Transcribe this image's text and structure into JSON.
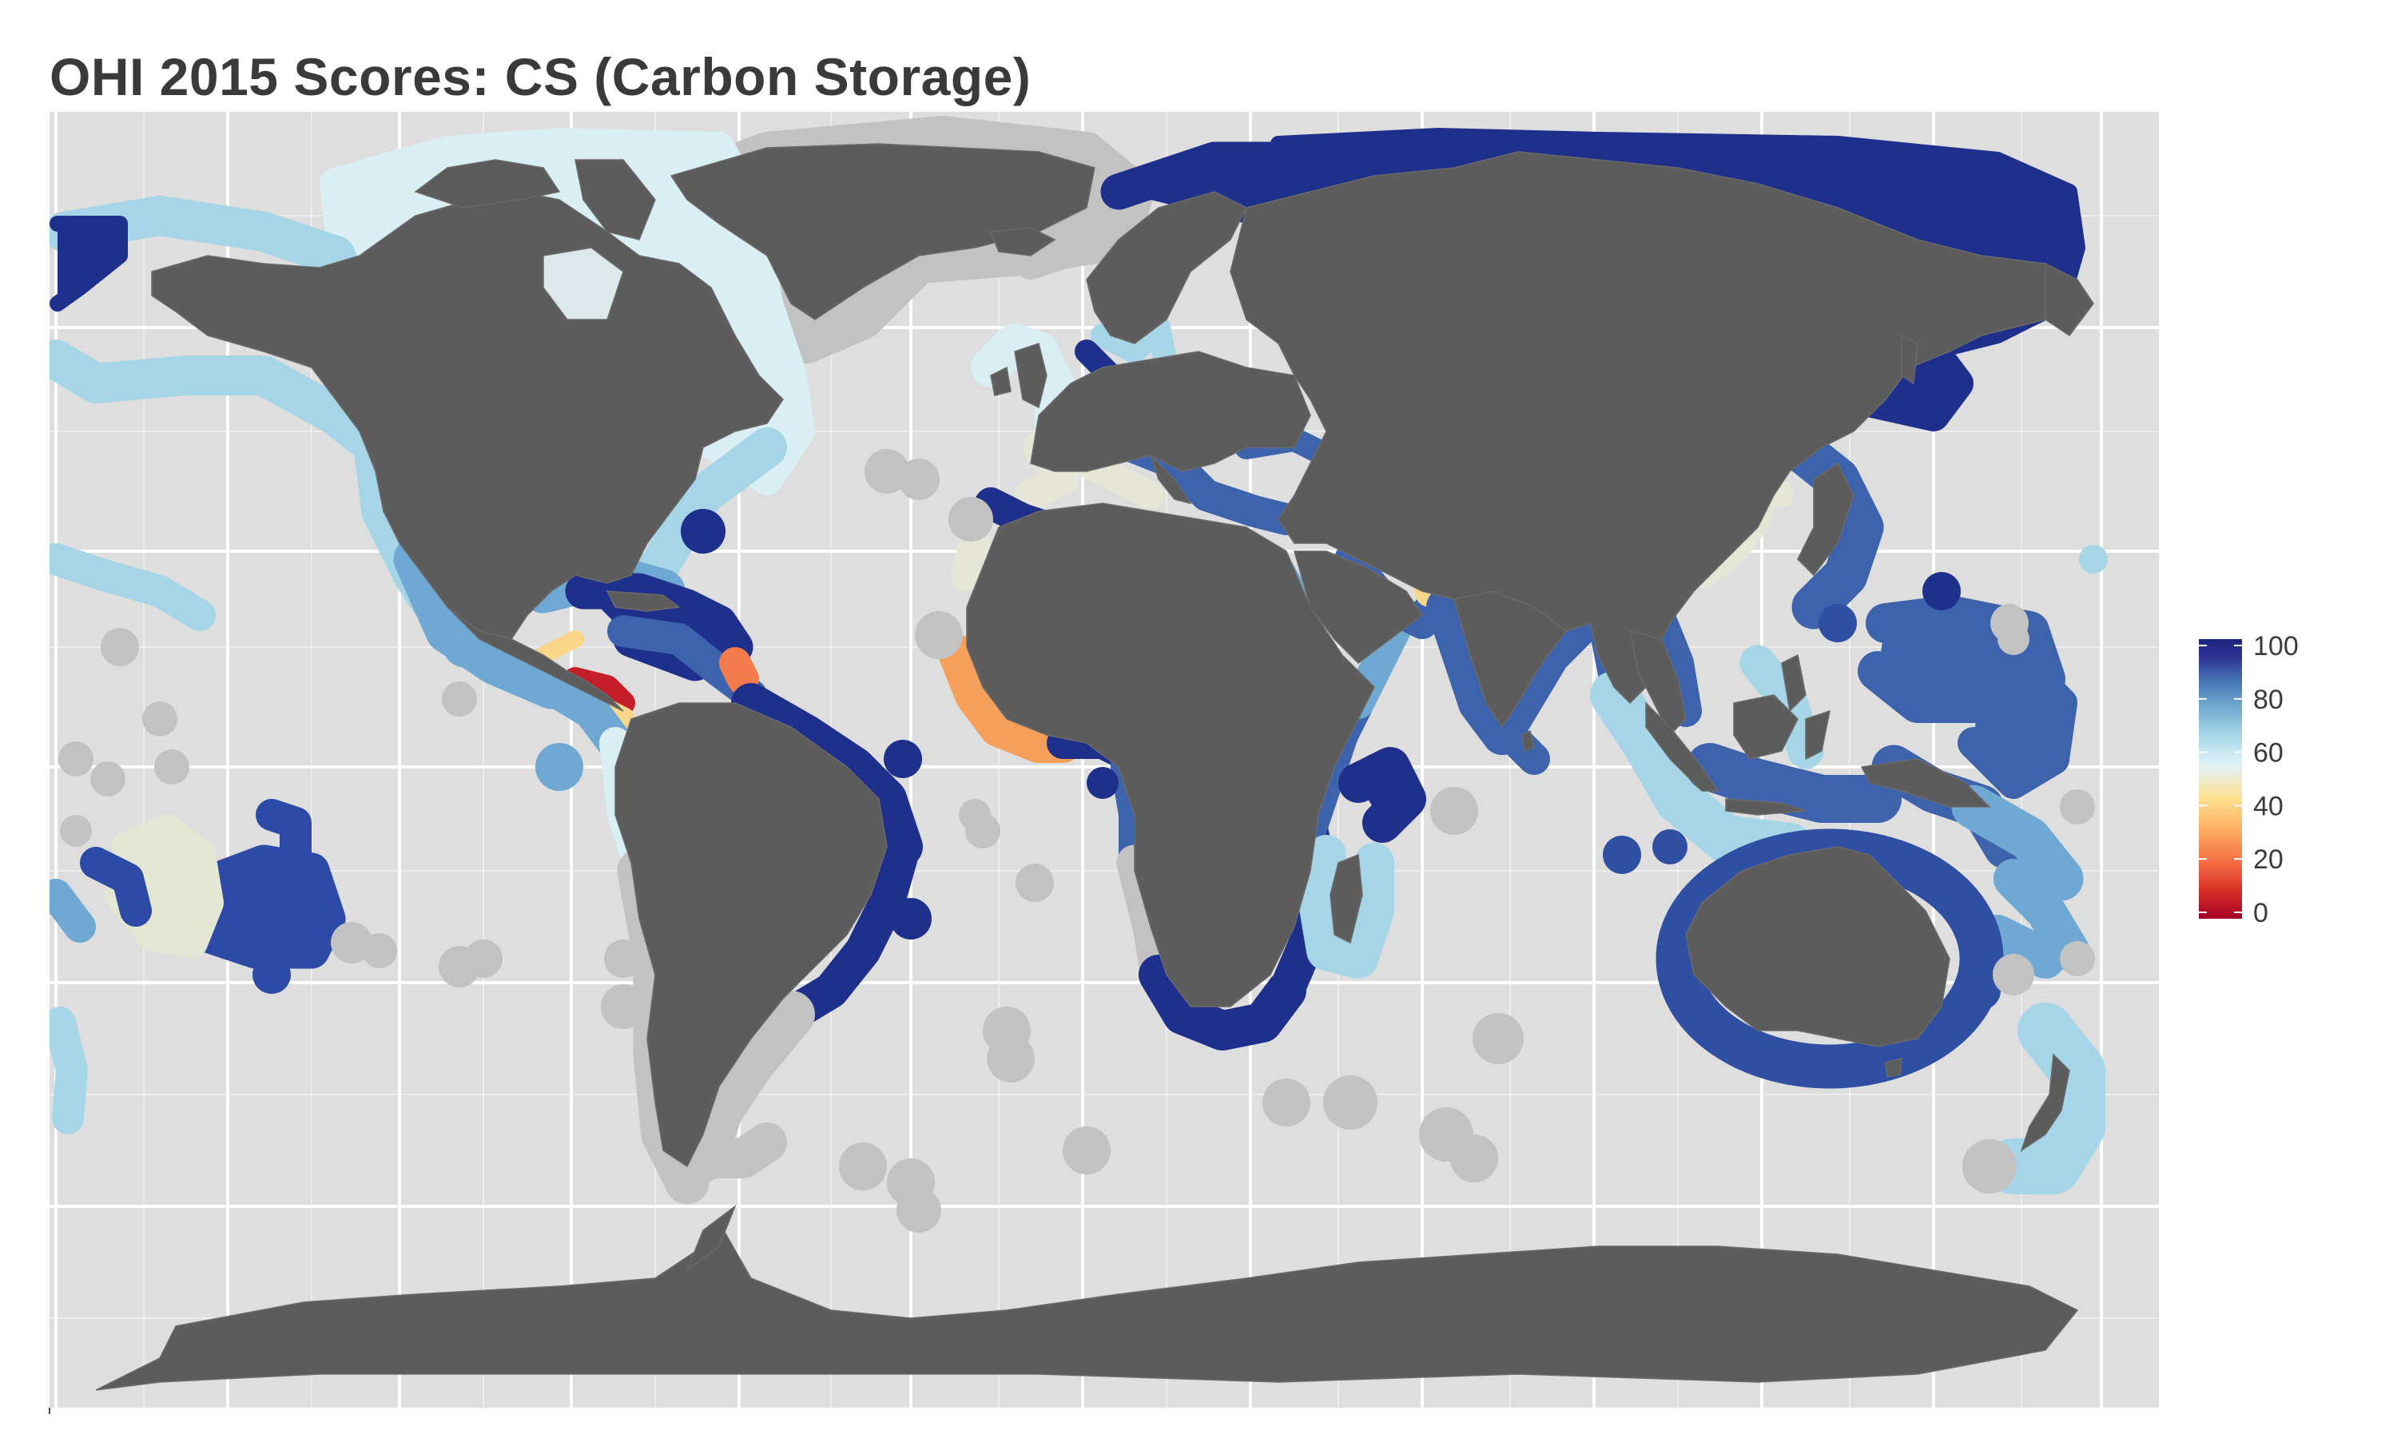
{
  "title": "OHI 2015 Scores: CS (Carbon Storage)",
  "legend": {
    "ticks": [
      {
        "value": 100,
        "label": "100"
      },
      {
        "value": 80,
        "label": "80"
      },
      {
        "value": 60,
        "label": "60"
      },
      {
        "value": 40,
        "label": "40"
      },
      {
        "value": 20,
        "label": "20"
      },
      {
        "value": 0,
        "label": "0"
      }
    ],
    "range": [
      0,
      100
    ],
    "palette": [
      "#a50026",
      "#d73027",
      "#f46d43",
      "#fdae61",
      "#fee090",
      "#e0f3f8",
      "#abd9e9",
      "#74add1",
      "#4575b4",
      "#313695",
      "#1a237e"
    ]
  },
  "colors": {
    "ocean_background": "#dedede",
    "land": "#5c5c5c",
    "no_data_region": "#c2c2c2",
    "gridline": "#ffffff"
  }
}
